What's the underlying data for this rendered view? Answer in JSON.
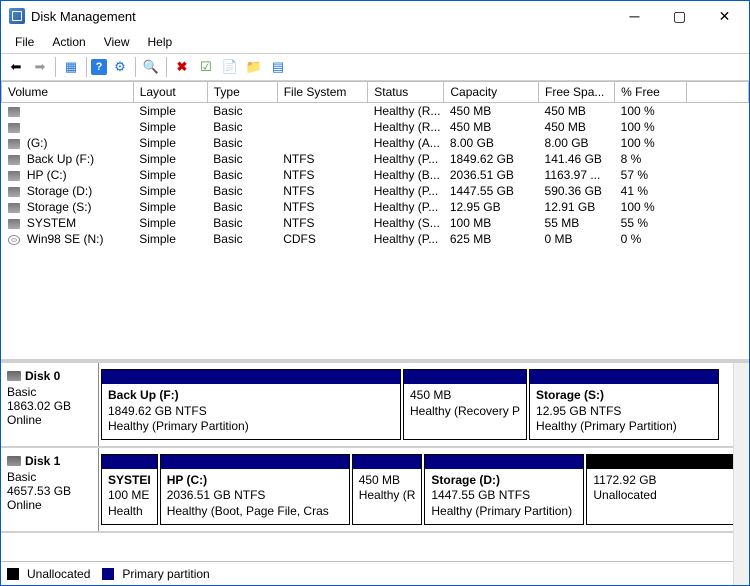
{
  "window": {
    "title": "Disk Management"
  },
  "menu": {
    "file": "File",
    "action": "Action",
    "view": "View",
    "help": "Help"
  },
  "columns": {
    "volume": "Volume",
    "layout": "Layout",
    "type": "Type",
    "fs": "File System",
    "status": "Status",
    "capacity": "Capacity",
    "free": "Free Spa...",
    "pctfree": "% Free"
  },
  "col_widths": {
    "volume": 128,
    "layout": 72,
    "type": 68,
    "fs": 88,
    "status": 74,
    "capacity": 92,
    "free": 74,
    "pctfree": 70,
    "tail": 60
  },
  "volumes": [
    {
      "icon": "hdd",
      "name": "",
      "layout": "Simple",
      "type": "Basic",
      "fs": "",
      "status": "Healthy (R...",
      "cap": "450 MB",
      "free": "450 MB",
      "pct": "100 %"
    },
    {
      "icon": "hdd",
      "name": "",
      "layout": "Simple",
      "type": "Basic",
      "fs": "",
      "status": "Healthy (R...",
      "cap": "450 MB",
      "free": "450 MB",
      "pct": "100 %"
    },
    {
      "icon": "hdd",
      "name": "(G:)",
      "layout": "Simple",
      "type": "Basic",
      "fs": "",
      "status": "Healthy (A...",
      "cap": "8.00 GB",
      "free": "8.00 GB",
      "pct": "100 %"
    },
    {
      "icon": "hdd",
      "name": "Back Up (F:)",
      "layout": "Simple",
      "type": "Basic",
      "fs": "NTFS",
      "status": "Healthy (P...",
      "cap": "1849.62 GB",
      "free": "141.46 GB",
      "pct": "8 %"
    },
    {
      "icon": "hdd",
      "name": "HP (C:)",
      "layout": "Simple",
      "type": "Basic",
      "fs": "NTFS",
      "status": "Healthy (B...",
      "cap": "2036.51 GB",
      "free": "1163.97 ...",
      "pct": "57 %"
    },
    {
      "icon": "hdd",
      "name": "Storage (D:)",
      "layout": "Simple",
      "type": "Basic",
      "fs": "NTFS",
      "status": "Healthy (P...",
      "cap": "1447.55 GB",
      "free": "590.36 GB",
      "pct": "41 %"
    },
    {
      "icon": "hdd",
      "name": "Storage (S:)",
      "layout": "Simple",
      "type": "Basic",
      "fs": "NTFS",
      "status": "Healthy (P...",
      "cap": "12.95 GB",
      "free": "12.91 GB",
      "pct": "100 %"
    },
    {
      "icon": "hdd",
      "name": "SYSTEM",
      "layout": "Simple",
      "type": "Basic",
      "fs": "NTFS",
      "status": "Healthy (S...",
      "cap": "100 MB",
      "free": "55 MB",
      "pct": "55 %"
    },
    {
      "icon": "cd",
      "name": "Win98 SE (N:)",
      "layout": "Simple",
      "type": "Basic",
      "fs": "CDFS",
      "status": "Healthy (P...",
      "cap": "625 MB",
      "free": "0 MB",
      "pct": "0 %"
    }
  ],
  "disks": [
    {
      "title": "Disk 0",
      "kind": "Basic",
      "size": "1863.02 GB",
      "state": "Online",
      "parts": [
        {
          "name": "Back Up  (F:)",
          "line2": "1849.62 GB NTFS",
          "line3": "Healthy (Primary Partition)",
          "color": "#000080",
          "grow": 300
        },
        {
          "name": "",
          "line2": "450 MB",
          "line3": "Healthy (Recovery P",
          "color": "#000080",
          "grow": 112
        },
        {
          "name": "Storage  (S:)",
          "line2": "12.95 GB NTFS",
          "line3": "Healthy (Primary Partition)",
          "color": "#000080",
          "grow": 190
        }
      ]
    },
    {
      "title": "Disk 1",
      "kind": "Basic",
      "size": "4657.53 GB",
      "state": "Online",
      "parts": [
        {
          "name": "SYSTEI",
          "line2": "100 ME",
          "line3": "Health",
          "color": "#000080",
          "grow": 42
        },
        {
          "name": "HP  (C:)",
          "line2": "2036.51 GB NTFS",
          "line3": "Healthy (Boot, Page File, Cras",
          "color": "#000080",
          "grow": 190
        },
        {
          "name": "",
          "line2": "450 MB",
          "line3": "Healthy (R",
          "color": "#000080",
          "grow": 64
        },
        {
          "name": "Storage  (D:)",
          "line2": "1447.55 GB NTFS",
          "line3": "Healthy (Primary Partition)",
          "color": "#000080",
          "grow": 160
        },
        {
          "name": "",
          "line2": "1172.92 GB",
          "line3": "Unallocated",
          "color": "#000000",
          "grow": 148
        }
      ]
    }
  ],
  "legend": {
    "unalloc_label": "Unallocated",
    "unalloc_color": "#000000",
    "primary_label": "Primary partition",
    "primary_color": "#000080"
  }
}
